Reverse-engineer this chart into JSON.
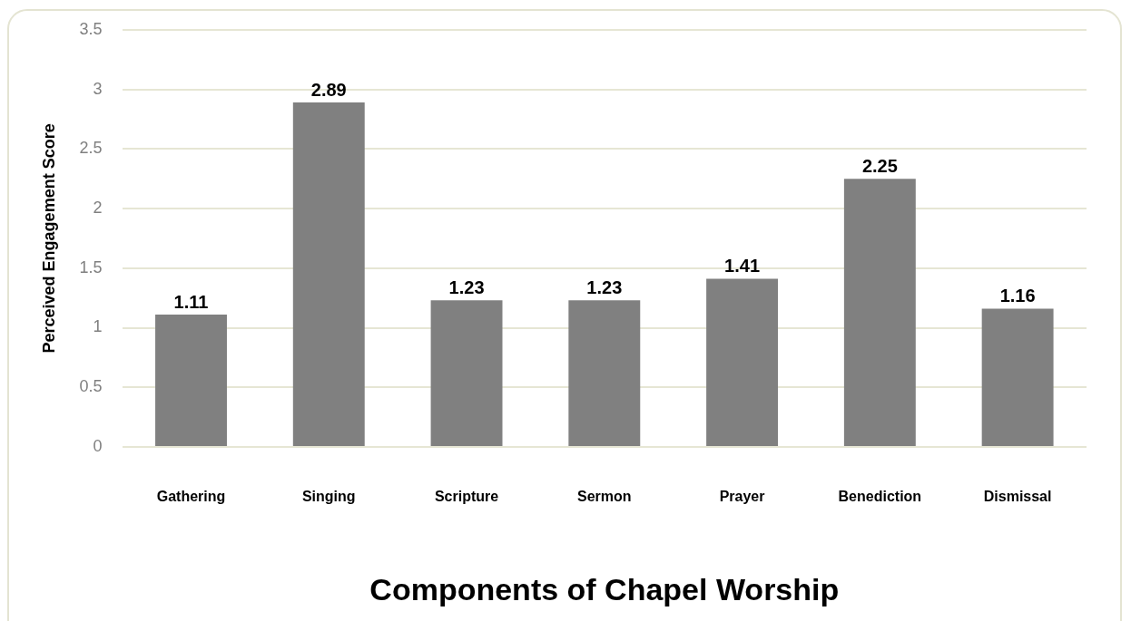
{
  "chart_data": {
    "type": "bar",
    "xlabel": "Components of Chapel Worship",
    "ylabel": "Perceived Engagement Score",
    "categories": [
      "Gathering",
      "Singing",
      "Scripture",
      "Sermon",
      "Prayer",
      "Benediction",
      "Dismissal"
    ],
    "values": [
      1.11,
      2.89,
      1.23,
      1.23,
      1.41,
      2.25,
      1.16
    ],
    "color": "#808080",
    "ylim": [
      0,
      3.5
    ],
    "yticks": [
      0,
      0.5,
      1,
      1.5,
      2,
      2.5,
      3,
      3.5
    ],
    "grid": "y",
    "data_labels": true
  }
}
